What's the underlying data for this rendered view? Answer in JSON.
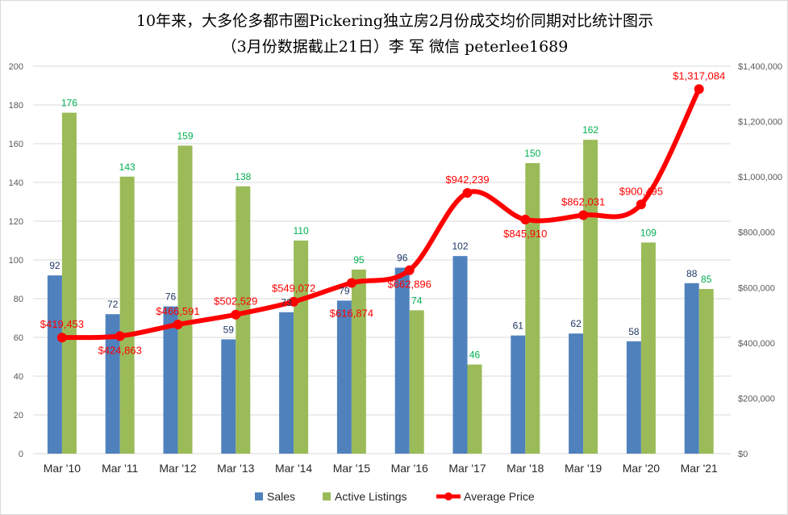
{
  "chart_data": {
    "type": "bar+line",
    "title": "10年来，大多伦多都市圈Pickering独立房2月份成交均价同期对比统计图示",
    "subtitle": "（3月份数据截止21日）李 军  微信  peterlee1689",
    "categories": [
      "Mar '10",
      "Mar '11",
      "Mar '12",
      "Mar '13",
      "Mar '14",
      "Mar '15",
      "Mar '16",
      "Mar '17",
      "Mar '18",
      "Mar '19",
      "Mar '20",
      "Mar '21"
    ],
    "series": [
      {
        "name": "Sales",
        "type": "bar",
        "axis": "left",
        "color": "#4f81bd",
        "label_color": "#1f3864",
        "values": [
          92,
          72,
          76,
          59,
          73,
          79,
          96,
          102,
          61,
          62,
          58,
          88
        ]
      },
      {
        "name": "Active Listings",
        "type": "bar",
        "axis": "left",
        "color": "#9bbb59",
        "label_color": "#00b050",
        "values": [
          176,
          143,
          159,
          138,
          110,
          95,
          74,
          46,
          150,
          162,
          109,
          85
        ]
      },
      {
        "name": "Average Price",
        "type": "line",
        "axis": "right",
        "color": "#ff0000",
        "values": [
          419453,
          424863,
          466591,
          502529,
          549072,
          616874,
          662896,
          942239,
          845910,
          862031,
          900495,
          1317084
        ],
        "labels": [
          "$419,453",
          "$424,863",
          "$466,591",
          "$502,529",
          "$549,072",
          "$616,874",
          "$662,896",
          "$942,239",
          "$845,910",
          "$862,031",
          "$900,495",
          "$1,317,084"
        ]
      }
    ],
    "ylim_left": [
      0,
      200
    ],
    "yticks_left": [
      "0",
      "20",
      "40",
      "60",
      "80",
      "100",
      "120",
      "140",
      "160",
      "180",
      "200"
    ],
    "ylim_right": [
      0,
      1400000
    ],
    "yticks_right": [
      "$0",
      "$200,000",
      "$400,000",
      "$600,000",
      "$800,000",
      "$1,000,000",
      "$1,200,000",
      "$1,400,000"
    ],
    "grid": true,
    "legend": "bottom"
  }
}
